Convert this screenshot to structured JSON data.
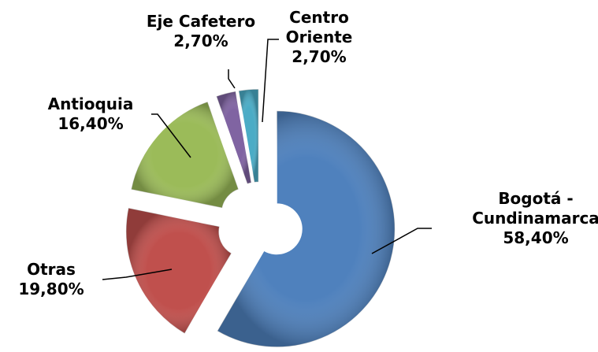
{
  "chart_data": {
    "type": "pie",
    "categories": [
      "Bogotá - Cundinamarca",
      "Otras",
      "Antioquia",
      "Eje Cafetero",
      "Centro Oriente"
    ],
    "values": [
      58.4,
      19.8,
      16.4,
      2.7,
      2.7
    ],
    "value_labels": [
      "58,40%",
      "19,80%",
      "16,40%",
      "2,70%",
      "2,70%"
    ],
    "colors": [
      "#4f81bd",
      "#c0504d",
      "#9bbb59",
      "#8064a2",
      "#4bacc6"
    ]
  }
}
